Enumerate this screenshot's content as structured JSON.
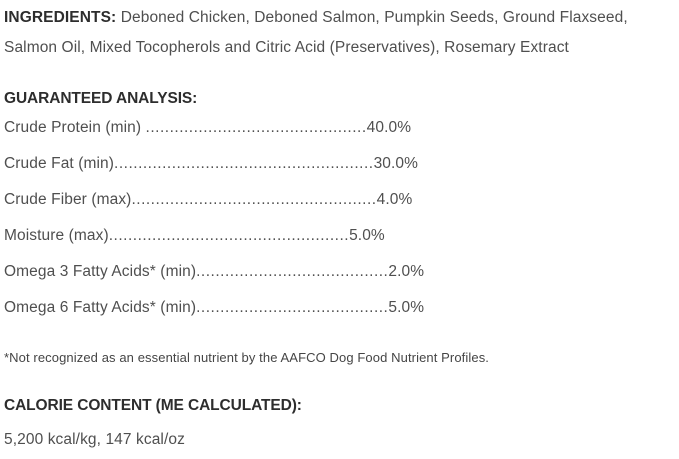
{
  "colors": {
    "background": "#ffffff",
    "heading_text": "#2d2d2d",
    "body_text": "#4f4f4f"
  },
  "ingredients": {
    "label": "INGREDIENTS:",
    "line1": "Deboned Chicken, Deboned Salmon, Pumpkin Seeds, Ground Flaxseed,",
    "line2": "Salmon Oil, Mixed Tocopherols and Citric Acid (Preservatives), Rosemary Extract"
  },
  "guaranteed_analysis": {
    "heading": "GUARANTEED ANALYSIS:",
    "rows": [
      {
        "label": "Crude Protein (min) ",
        "dots": "..............................................",
        "value": "40.0%"
      },
      {
        "label": "Crude Fat (min)",
        "dots": "......................................................",
        "value": "30.0%"
      },
      {
        "label": "Crude Fiber (max)",
        "dots": "...................................................",
        "value": "4.0%"
      },
      {
        "label": "Moisture (max)",
        "dots": "..................................................",
        "value": "5.0%"
      },
      {
        "label": "Omega 3 Fatty Acids* (min)",
        "dots": "........................................",
        "value": "2.0%"
      },
      {
        "label": "Omega 6 Fatty Acids* (min)",
        "dots": "........................................",
        "value": "5.0%"
      }
    ],
    "footnote": "*Not recognized as an essential nutrient by the AAFCO Dog Food Nutrient Profiles."
  },
  "calorie_content": {
    "heading": "CALORIE CONTENT (ME CALCULATED):",
    "value": "5,200 kcal/kg, 147 kcal/oz"
  }
}
